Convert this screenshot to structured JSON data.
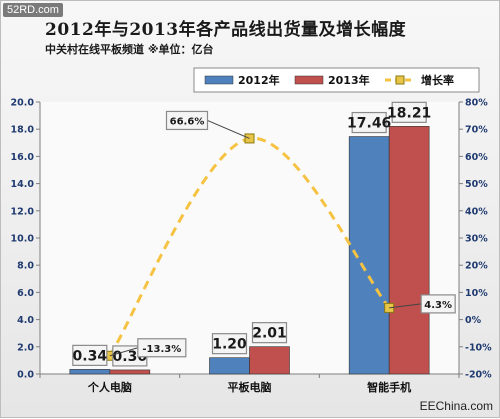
{
  "watermark": "52RD.com",
  "source_label": "EEChina.com",
  "chart_data": {
    "type": "bar",
    "title": "2012年与2013年各产品线出货量及增长幅度",
    "subtitle": "中关村在线平板频道 ※单位：亿台",
    "categories": [
      "个人电脑",
      "平板电脑",
      "智能手机"
    ],
    "series": [
      {
        "name": "2012年",
        "values": [
          0.34,
          1.2,
          17.46
        ],
        "labels": [
          "0.34",
          "1.20",
          "17.46"
        ],
        "color": "#4f81bd"
      },
      {
        "name": "2013年",
        "values": [
          0.3,
          2.01,
          18.21
        ],
        "labels": [
          "0.30",
          "2.01",
          "18.21"
        ],
        "color": "#c0504d"
      }
    ],
    "line_series": {
      "name": "增长率",
      "values": [
        -13.3,
        66.6,
        4.3
      ],
      "labels": [
        "-13.3%",
        "66.6%",
        "4.3%"
      ],
      "color": "#f5c242",
      "style": "dashed-smooth",
      "axis": "right"
    },
    "ylim": [
      0,
      20
    ],
    "yticks": [
      "0.0",
      "2.0",
      "4.0",
      "6.0",
      "8.0",
      "10.0",
      "12.0",
      "14.0",
      "16.0",
      "18.0",
      "20.0"
    ],
    "y2lim": [
      -20,
      80
    ],
    "y2ticks": [
      "-20%",
      "-10%",
      "0%",
      "10%",
      "20%",
      "30%",
      "40%",
      "50%",
      "60%",
      "70%",
      "80%"
    ],
    "legend_position": "top-right",
    "grid": false
  }
}
